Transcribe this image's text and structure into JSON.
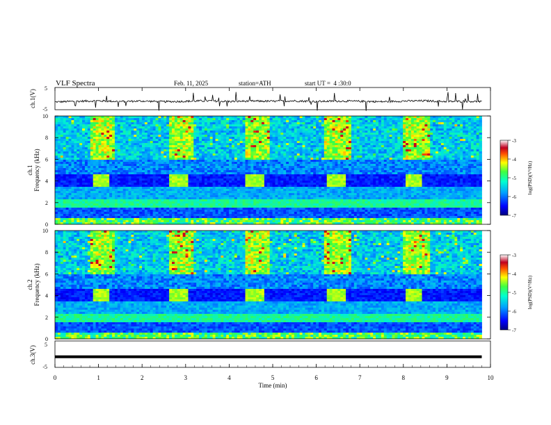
{
  "header": {
    "title": "VLF Spectra",
    "date": "Feb. 11, 2025",
    "station": "station=ATH",
    "start_ut": "start UT =  4 :30:0"
  },
  "chart_data": [
    {
      "type": "line",
      "panel": "ch1-waveform",
      "ylabel": "ch.1(V)",
      "yticklabels": [
        "5",
        "-5"
      ],
      "ylim": [
        -5,
        5
      ],
      "x": [
        0,
        0.5,
        1.0,
        1.5,
        2.0,
        2.5,
        3.0,
        3.5,
        4.0,
        4.5,
        5.0,
        5.5,
        6.0,
        6.5,
        7.0,
        7.5,
        8.0,
        8.5,
        9.0,
        9.5,
        9.8
      ],
      "y": [
        -1.5,
        -1.2,
        -1.0,
        -1.3,
        -1.1,
        -1.4,
        -1.2,
        -1.0,
        -1.3,
        -1.1,
        -1.2,
        -1.0,
        -1.3,
        -1.1,
        -1.2,
        -1.4,
        -1.1,
        -1.0,
        -1.3,
        -1.2,
        -1.4
      ]
    },
    {
      "type": "heatmap",
      "panel": "ch1-spectrogram",
      "ylabel": "Frequency (kHz)",
      "channel_label": "ch.1",
      "yticks": [
        0,
        2,
        4,
        6,
        8,
        10
      ],
      "ylim": [
        0,
        10
      ],
      "xlim": [
        0,
        9.8
      ],
      "tone_bursts": [
        {
          "start": 0.85,
          "end": 1.25,
          "freq": 4.0
        },
        {
          "start": 2.65,
          "end": 3.05,
          "freq": 4.0
        },
        {
          "start": 4.4,
          "end": 4.8,
          "freq": 4.0
        },
        {
          "start": 6.25,
          "end": 6.65,
          "freq": 4.0
        },
        {
          "start": 8.05,
          "end": 8.45,
          "freq": 4.0
        }
      ],
      "colorbar": {
        "label": "log(PSD)(V²/Hz)",
        "ticks": [
          "-3",
          "-4",
          "-5",
          "-6",
          "-7"
        ]
      }
    },
    {
      "type": "heatmap",
      "panel": "ch2-spectrogram",
      "ylabel": "Frequency (kHz)",
      "channel_label": "ch.2",
      "yticks": [
        0,
        2,
        4,
        6,
        8,
        10
      ],
      "ylim": [
        0,
        10
      ],
      "xlim": [
        0,
        9.8
      ],
      "tone_bursts": [
        {
          "start": 0.85,
          "end": 1.25,
          "freq": 4.0
        },
        {
          "start": 2.65,
          "end": 3.05,
          "freq": 4.0
        },
        {
          "start": 4.4,
          "end": 4.8,
          "freq": 4.0
        },
        {
          "start": 6.25,
          "end": 6.65,
          "freq": 4.0
        },
        {
          "start": 8.05,
          "end": 8.45,
          "freq": 4.0
        }
      ],
      "colorbar": {
        "label": "log(PSD)(V²/Hz)",
        "ticks": [
          "-3",
          "-4",
          "-5",
          "-6",
          "-7"
        ]
      }
    },
    {
      "type": "line",
      "panel": "ch3-waveform",
      "ylabel": "ch.3(V)",
      "yticklabels": [
        "5",
        "-5"
      ],
      "ylim": [
        -5,
        5
      ],
      "x": [
        0,
        9.8
      ],
      "y": [
        -1.0,
        -1.0
      ]
    }
  ],
  "x_axis": {
    "label": "Time (min)",
    "ticks": [
      "0",
      "1",
      "2",
      "3",
      "4",
      "5",
      "6",
      "7",
      "8",
      "9",
      "10"
    ],
    "xlim": [
      0,
      10
    ]
  },
  "colors": {
    "axis": "#000000",
    "waveform": "#000000",
    "background": "#ffffff"
  }
}
